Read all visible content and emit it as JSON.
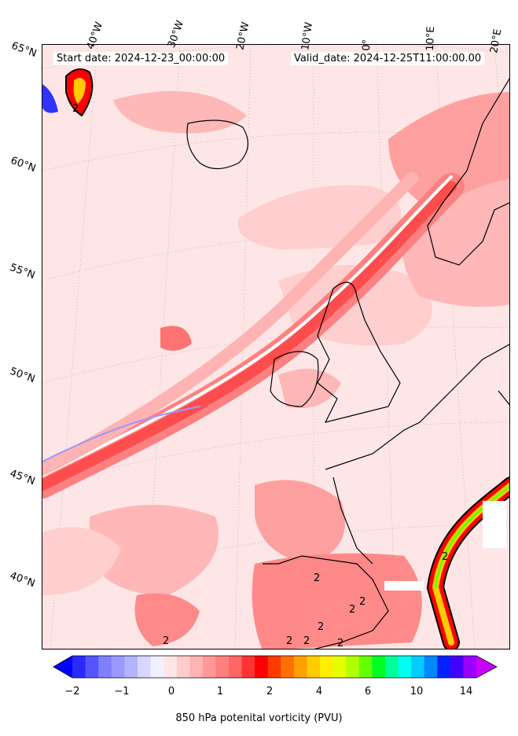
{
  "header": {
    "start_date": "Start date: 2024-12-23_00:00:00",
    "valid_date": "Valid_date: 2024-12-25T11:00:00.00"
  },
  "longitude_labels": [
    "40°W",
    "30°W",
    "20°W",
    "10°W",
    "0°",
    "10°E",
    "20°E"
  ],
  "latitude_labels": [
    "65°N",
    "60°N",
    "55°N",
    "50°N",
    "45°N",
    "40°N"
  ],
  "colorbar": {
    "label": "850 hPa potenital vorticity (PVU)",
    "tick_labels": [
      "−2",
      "−1",
      "0",
      "1",
      "2",
      "4",
      "6",
      "10",
      "14"
    ],
    "colors": [
      "#0000ff",
      "#2a2aff",
      "#5555ff",
      "#7f7fff",
      "#9999ff",
      "#b3b3ff",
      "#d6d6ff",
      "#f0f0ff",
      "#ffe6e6",
      "#ffcccc",
      "#ffb3b3",
      "#ff9999",
      "#ff7f7f",
      "#ff6666",
      "#ff3333",
      "#ff0000",
      "#ff3a00",
      "#ff7000",
      "#ffa000",
      "#ffcc00",
      "#ffee00",
      "#e6ff00",
      "#b3ff00",
      "#66ff00",
      "#00ff22",
      "#00ff99",
      "#00ffee",
      "#00ccff",
      "#0088ff",
      "#0022ff",
      "#4400ff",
      "#9900ff",
      "#cc00ff"
    ]
  },
  "contour_labels": [
    "2",
    "2",
    "2",
    "2",
    "2",
    "2",
    "2",
    "2",
    "2",
    "2"
  ]
}
